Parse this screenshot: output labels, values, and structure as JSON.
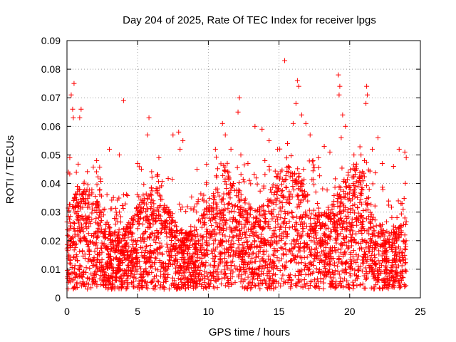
{
  "chart_data": {
    "type": "scatter",
    "title": "Day 204 of 2025, Rate Of TEC Index for receiver lpgs",
    "xlabel": "GPS time / hours",
    "ylabel": "ROTI / TECUs",
    "xlim": [
      0,
      25
    ],
    "ylim": [
      0,
      0.09
    ],
    "xticks": [
      "0",
      "5",
      "10",
      "15",
      "20",
      "25"
    ],
    "yticks": [
      "0",
      "0.01",
      "0.02",
      "0.03",
      "0.04",
      "0.05",
      "0.06",
      "0.07",
      "0.08",
      "0.09"
    ],
    "grid": true,
    "marker": "+",
    "color": "#ff0000",
    "series": [
      {
        "points": [
          [
            0.3,
            0.071
          ],
          [
            0.5,
            0.075
          ],
          [
            0.4,
            0.066
          ],
          [
            0.45,
            0.063
          ],
          [
            0.9,
            0.063
          ],
          [
            1.0,
            0.066
          ],
          [
            0.2,
            0.049
          ],
          [
            0.1,
            0.044
          ],
          [
            4.0,
            0.069
          ],
          [
            5.8,
            0.063
          ],
          [
            5.7,
            0.057
          ],
          [
            7.5,
            0.057
          ],
          [
            7.9,
            0.058
          ],
          [
            8.2,
            0.055
          ],
          [
            8.0,
            0.052
          ],
          [
            10.5,
            0.052
          ],
          [
            11.0,
            0.061
          ],
          [
            11.2,
            0.057
          ],
          [
            11.6,
            0.052
          ],
          [
            12.1,
            0.065
          ],
          [
            12.2,
            0.07
          ],
          [
            12.3,
            0.05
          ],
          [
            13.3,
            0.06
          ],
          [
            13.8,
            0.059
          ],
          [
            14.3,
            0.055
          ],
          [
            14.9,
            0.052
          ],
          [
            15.4,
            0.083
          ],
          [
            15.6,
            0.054
          ],
          [
            16.0,
            0.061
          ],
          [
            16.3,
            0.076
          ],
          [
            16.4,
            0.074
          ],
          [
            16.2,
            0.068
          ],
          [
            16.6,
            0.064
          ],
          [
            16.9,
            0.061
          ],
          [
            17.2,
            0.057
          ],
          [
            17.4,
            0.048
          ],
          [
            18.2,
            0.053
          ],
          [
            18.6,
            0.051
          ],
          [
            19.2,
            0.078
          ],
          [
            19.3,
            0.074
          ],
          [
            19.25,
            0.071
          ],
          [
            19.5,
            0.064
          ],
          [
            19.4,
            0.056
          ],
          [
            19.7,
            0.06
          ],
          [
            20.3,
            0.05
          ],
          [
            21.2,
            0.074
          ],
          [
            21.25,
            0.071
          ],
          [
            21.15,
            0.068
          ],
          [
            21.6,
            0.052
          ],
          [
            22.0,
            0.056
          ],
          [
            22.3,
            0.047
          ],
          [
            23.1,
            0.046
          ],
          [
            23.5,
            0.052
          ],
          [
            23.9,
            0.051
          ],
          [
            24.0,
            0.049
          ],
          [
            2.1,
            0.048
          ],
          [
            3.0,
            0.052
          ],
          [
            3.7,
            0.05
          ],
          [
            5.0,
            0.047
          ],
          [
            6.5,
            0.049
          ],
          [
            9.2,
            0.045
          ],
          [
            12.8,
            0.047
          ],
          [
            14.0,
            0.048
          ],
          [
            17.8,
            0.049
          ],
          [
            20.8,
            0.05
          ]
        ]
      }
    ]
  }
}
